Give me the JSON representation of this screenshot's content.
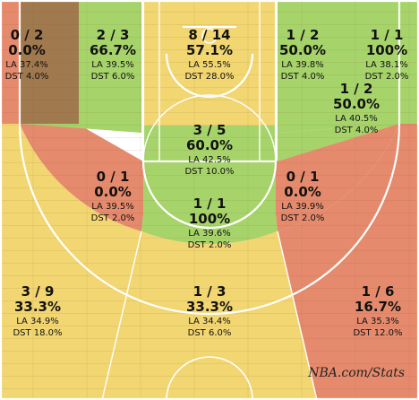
{
  "chart_data": {
    "type": "shot_chart",
    "zones": [
      {
        "id": "left-corner-3",
        "made": 0,
        "attempted": 2,
        "pct": 0.0,
        "la_pct": 37.4,
        "dst_pct": 4.0,
        "fill": "#e58a6d"
      },
      {
        "id": "left-baseline-mid",
        "made": 2,
        "attempted": 3,
        "pct": 66.7,
        "la_pct": 39.5,
        "dst_pct": 6.0,
        "fill": "#a6d46b"
      },
      {
        "id": "restricted-area",
        "made": 8,
        "attempted": 14,
        "pct": 57.1,
        "la_pct": 55.5,
        "dst_pct": 28.0,
        "fill": "#f2d672"
      },
      {
        "id": "right-baseline-mid",
        "made": 1,
        "attempted": 2,
        "pct": 50.0,
        "la_pct": 39.8,
        "dst_pct": 4.0,
        "fill": "#a6d46b"
      },
      {
        "id": "right-corner-3",
        "made": 1,
        "attempted": 1,
        "pct": 100,
        "la_pct": 38.1,
        "dst_pct": 2.0,
        "fill": "#a6d46b"
      },
      {
        "id": "right-wing-mid",
        "made": 1,
        "attempted": 2,
        "pct": 50.0,
        "la_pct": 40.5,
        "dst_pct": 4.0,
        "fill": "#a6d46b"
      },
      {
        "id": "paint-non-ra",
        "made": 3,
        "attempted": 5,
        "pct": 60.0,
        "la_pct": 42.5,
        "dst_pct": 10.0,
        "fill": "#a6d46b"
      },
      {
        "id": "left-elbow-mid",
        "made": 0,
        "attempted": 1,
        "pct": 0.0,
        "la_pct": 39.5,
        "dst_pct": 2.0,
        "fill": "#e58a6d"
      },
      {
        "id": "right-elbow-mid",
        "made": 0,
        "attempted": 1,
        "pct": 0.0,
        "la_pct": 39.9,
        "dst_pct": 2.0,
        "fill": "#e58a6d"
      },
      {
        "id": "top-key-mid",
        "made": 1,
        "attempted": 1,
        "pct": 100,
        "la_pct": 39.6,
        "dst_pct": 2.0,
        "fill": "#a6d46b"
      },
      {
        "id": "left-wing-3",
        "made": 3,
        "attempted": 9,
        "pct": 33.3,
        "la_pct": 34.9,
        "dst_pct": 18.0,
        "fill": "#f2d672"
      },
      {
        "id": "center-3",
        "made": 1,
        "attempted": 3,
        "pct": 33.3,
        "la_pct": 34.4,
        "dst_pct": 6.0,
        "fill": "#f2d672"
      },
      {
        "id": "right-wing-3",
        "made": 1,
        "attempted": 6,
        "pct": 16.7,
        "la_pct": 35.3,
        "dst_pct": 12.0,
        "fill": "#e58a6d"
      }
    ],
    "extra_fill_left_baseline_corner": "#a0794f",
    "labels": [
      {
        "zone": "left-corner-3",
        "frac": "0 / 2",
        "pct": "0.0%",
        "la": "LA 37.4%",
        "dst": "DST 4.0%"
      },
      {
        "zone": "left-baseline-mid",
        "frac": "2 / 3",
        "pct": "66.7%",
        "la": "LA 39.5%",
        "dst": "DST 6.0%"
      },
      {
        "zone": "restricted-area",
        "frac": "8 / 14",
        "pct": "57.1%",
        "la": "LA 55.5%",
        "dst": "DST 28.0%"
      },
      {
        "zone": "right-baseline-mid",
        "frac": "1 / 2",
        "pct": "50.0%",
        "la": "LA 39.8%",
        "dst": "DST 4.0%"
      },
      {
        "zone": "right-corner-3",
        "frac": "1 / 1",
        "pct": "100%",
        "la": "LA 38.1%",
        "dst": "DST 2.0%"
      },
      {
        "zone": "right-wing-mid",
        "frac": "1 / 2",
        "pct": "50.0%",
        "la": "LA 40.5%",
        "dst": "DST 4.0%"
      },
      {
        "zone": "paint-non-ra",
        "frac": "3 / 5",
        "pct": "60.0%",
        "la": "LA 42.5%",
        "dst": "DST 10.0%"
      },
      {
        "zone": "left-elbow-mid",
        "frac": "0 / 1",
        "pct": "0.0%",
        "la": "LA 39.5%",
        "dst": "DST 2.0%"
      },
      {
        "zone": "right-elbow-mid",
        "frac": "0 / 1",
        "pct": "0.0%",
        "la": "LA 39.9%",
        "dst": "DST 2.0%"
      },
      {
        "zone": "top-key-mid",
        "frac": "1 / 1",
        "pct": "100%",
        "la": "LA 39.6%",
        "dst": "DST 2.0%"
      },
      {
        "zone": "left-wing-3",
        "frac": "3 / 9",
        "pct": "33.3%",
        "la": "LA 34.9%",
        "dst": "DST 18.0%"
      },
      {
        "zone": "center-3",
        "frac": "1 / 3",
        "pct": "33.3%",
        "la": "LA 34.4%",
        "dst": "DST 6.0%"
      },
      {
        "zone": "right-wing-3",
        "frac": "1 / 6",
        "pct": "16.7%",
        "la": "LA 35.3%",
        "dst": "DST 12.0%"
      }
    ],
    "watermark": "NBA.com/Stats"
  }
}
